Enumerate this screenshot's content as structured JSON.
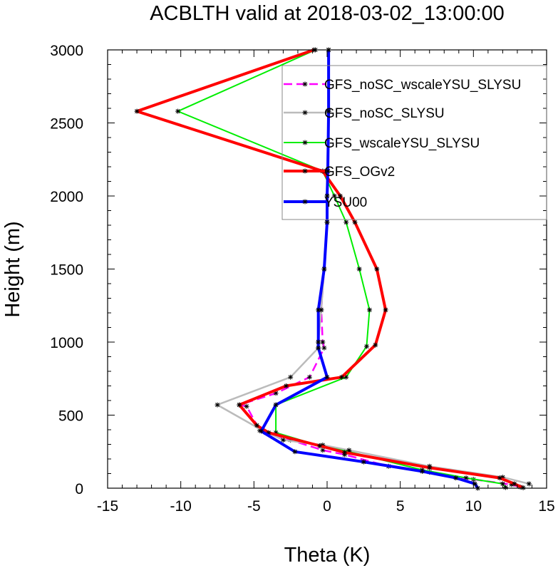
{
  "chart_data": {
    "type": "line",
    "title": "ACBLTH valid at 2018-03-02_13:00:00",
    "xlabel": "Theta (K)",
    "ylabel": "Height (m)",
    "xlim": [
      -15,
      15
    ],
    "ylim": [
      0,
      3000
    ],
    "x_ticks": [
      "-15",
      "-10",
      "-5",
      "0",
      "5",
      "10",
      "15"
    ],
    "y_ticks": [
      "0",
      "500",
      "1000",
      "1500",
      "2000",
      "2500",
      "3000"
    ],
    "grid": false,
    "legend": "top-right",
    "series": [
      {
        "name": "GFS_noSC_wscaleYSU_SLYSU",
        "color": "#ff00ff",
        "dash": "dashed",
        "width": 2.5,
        "points": [
          [
            13.2,
            8
          ],
          [
            12.6,
            25
          ],
          [
            10.0,
            60
          ],
          [
            7.0,
            110
          ],
          [
            4.2,
            150
          ],
          [
            1.2,
            230
          ],
          [
            -0.3,
            260
          ],
          [
            -2.5,
            330
          ],
          [
            -4.2,
            380
          ],
          [
            -4.6,
            395
          ],
          [
            -5.5,
            560
          ],
          [
            -6.0,
            570
          ],
          [
            -3.5,
            650
          ],
          [
            -1.2,
            760
          ],
          [
            -0.2,
            960
          ],
          [
            -0.3,
            1000
          ],
          [
            -0.4,
            1220
          ],
          [
            -0.2,
            1500
          ],
          [
            0.0,
            1820
          ],
          [
            0.0,
            2000
          ],
          [
            0.05,
            2170
          ],
          [
            0.1,
            2580
          ],
          [
            0.1,
            3000
          ]
        ]
      },
      {
        "name": "GFS_noSC_SLYSU",
        "color": "#bbbbbb",
        "dash": "solid",
        "width": 2.5,
        "points": [
          [
            13.8,
            30
          ],
          [
            12.0,
            75
          ],
          [
            7.0,
            150
          ],
          [
            1.5,
            260
          ],
          [
            -0.3,
            295
          ],
          [
            -3.0,
            330
          ],
          [
            -4.5,
            400
          ],
          [
            -7.5,
            570
          ],
          [
            -2.5,
            760
          ],
          [
            -0.6,
            960
          ],
          [
            -0.6,
            1000
          ],
          [
            -0.4,
            1220
          ],
          [
            -0.2,
            1500
          ],
          [
            0.0,
            1820
          ],
          [
            0.0,
            2000
          ],
          [
            0.0,
            2170
          ],
          [
            0.1,
            2580
          ],
          [
            0.1,
            3000
          ]
        ]
      },
      {
        "name": "GFS_wscaleYSU_SLYSU",
        "color": "#00ee00",
        "dash": "solid",
        "width": 2,
        "points": [
          [
            12.2,
            5
          ],
          [
            12.0,
            30
          ],
          [
            9.5,
            70
          ],
          [
            6.5,
            125
          ],
          [
            1.5,
            250
          ],
          [
            -0.5,
            290
          ],
          [
            -3.5,
            380
          ],
          [
            -3.5,
            570
          ],
          [
            1.3,
            760
          ],
          [
            2.7,
            970
          ],
          [
            2.9,
            1220
          ],
          [
            2.2,
            1500
          ],
          [
            1.3,
            1820
          ],
          [
            0.5,
            2000
          ],
          [
            -0.3,
            2170
          ],
          [
            -10.2,
            2580
          ],
          [
            -0.8,
            3000
          ]
        ]
      },
      {
        "name": "GFS_OGv2",
        "color": "#ff0000",
        "dash": "solid",
        "width": 4,
        "points": [
          [
            13.4,
            3
          ],
          [
            12.8,
            30
          ],
          [
            11.8,
            70
          ],
          [
            7.0,
            140
          ],
          [
            1.2,
            245
          ],
          [
            -0.5,
            290
          ],
          [
            -4.0,
            380
          ],
          [
            -4.8,
            430
          ],
          [
            -6.0,
            570
          ],
          [
            -2.8,
            700
          ],
          [
            1.0,
            760
          ],
          [
            3.3,
            980
          ],
          [
            4.0,
            1220
          ],
          [
            3.4,
            1500
          ],
          [
            1.9,
            1820
          ],
          [
            0.9,
            2000
          ],
          [
            -0.3,
            2170
          ],
          [
            -13.0,
            2580
          ],
          [
            -0.9,
            3000
          ]
        ]
      },
      {
        "name": "YSU00",
        "color": "#0000ff",
        "dash": "solid",
        "width": 4,
        "points": [
          [
            10.3,
            0
          ],
          [
            10.1,
            30
          ],
          [
            8.8,
            70
          ],
          [
            6.5,
            115
          ],
          [
            2.5,
            180
          ],
          [
            -2.2,
            250
          ],
          [
            -4.5,
            390
          ],
          [
            -3.5,
            570
          ],
          [
            0.0,
            760
          ],
          [
            -0.6,
            960
          ],
          [
            -0.6,
            1000
          ],
          [
            -0.6,
            1220
          ],
          [
            -0.2,
            1500
          ],
          [
            0.0,
            1820
          ],
          [
            0.0,
            2000
          ],
          [
            0.05,
            2170
          ],
          [
            0.1,
            2580
          ],
          [
            0.1,
            3000
          ]
        ]
      }
    ]
  }
}
